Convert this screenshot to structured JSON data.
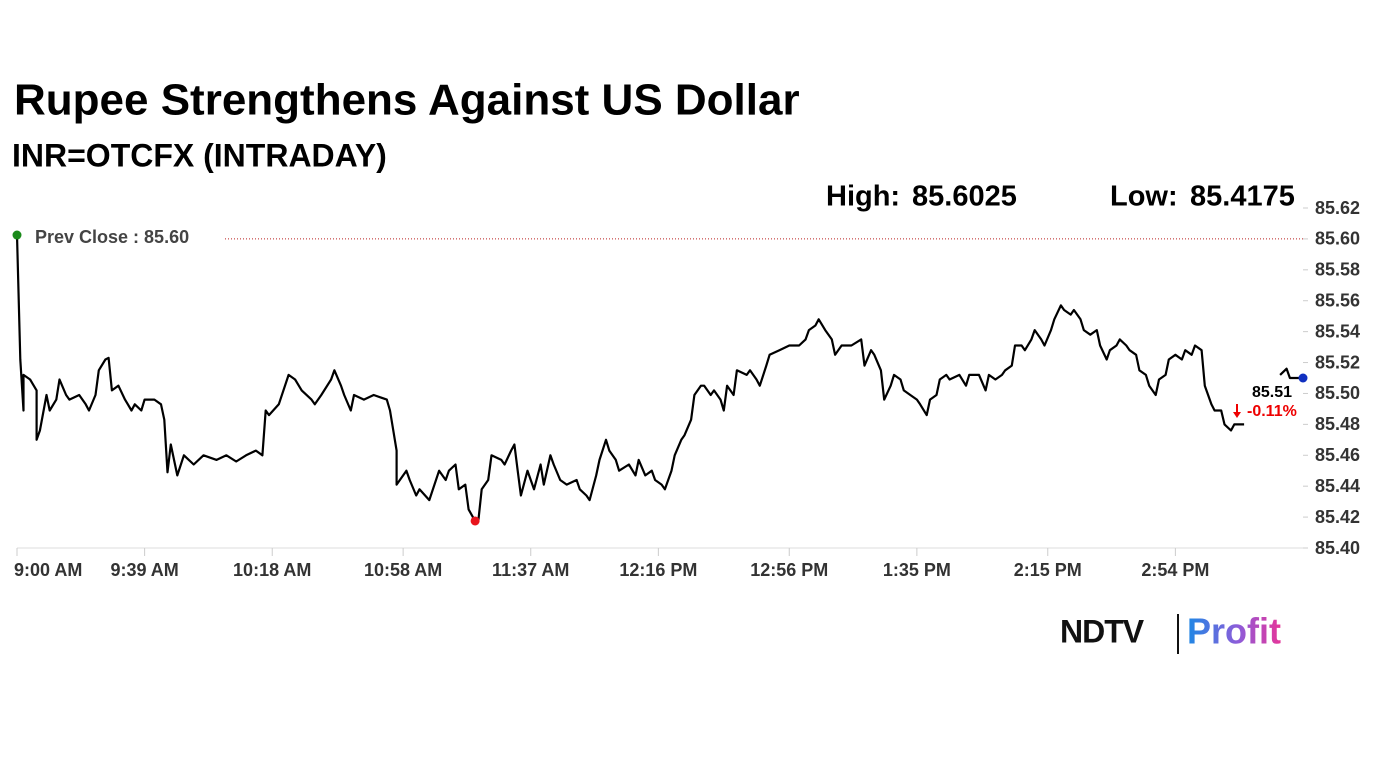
{
  "chart_data": {
    "type": "line",
    "title": "Rupee Strengthens Against US Dollar",
    "subtitle": "INR=OTCFX (INTRADAY)",
    "high_label": "High:",
    "high": 85.6025,
    "low_label": "Low:",
    "low": 85.4175,
    "prev_close": {
      "value": 85.6,
      "label": "Prev Close : 85.60"
    },
    "last": 85.51,
    "change_label": "-0.11%",
    "color": "#000000",
    "grid": false,
    "ylim": [
      85.4,
      85.62
    ],
    "yticks": [
      {
        "value": 85.4,
        "label": "85.40"
      },
      85.42,
      85.44,
      85.46,
      85.48,
      {
        "value": 85.5,
        "label": "85.50"
      },
      85.52,
      85.54,
      85.56,
      85.58,
      {
        "value": 85.6,
        "label": "85.60"
      },
      85.62
    ],
    "xlim": [
      540,
      933
    ],
    "xticks": [
      {
        "value": 540,
        "label": "9:00 AM"
      },
      {
        "value": 579,
        "label": "9:39 AM"
      },
      {
        "value": 618,
        "label": "10:18 AM"
      },
      {
        "value": 658,
        "label": "10:58 AM"
      },
      {
        "value": 697,
        "label": "11:37 AM"
      },
      {
        "value": 736,
        "label": "12:16 PM"
      },
      {
        "value": 776,
        "label": "12:56 PM"
      },
      {
        "value": 815,
        "label": "1:35 PM"
      },
      {
        "value": 855,
        "label": "2:15 PM"
      },
      {
        "value": 894,
        "label": "2:54 PM"
      }
    ],
    "x": [
      540,
      541,
      542,
      542,
      544,
      546,
      546,
      547,
      549,
      550,
      552,
      553,
      555,
      556,
      559,
      561,
      562,
      564,
      565,
      567,
      568,
      569,
      571,
      573,
      575,
      576,
      578,
      579,
      582,
      584,
      585,
      586,
      587,
      589,
      591,
      594,
      597,
      601,
      604,
      607,
      610,
      613,
      615,
      616,
      617,
      620,
      623,
      625,
      627,
      630,
      631,
      633,
      636,
      637,
      639,
      640,
      642,
      643,
      646,
      649,
      653,
      654,
      656,
      656,
      659,
      660,
      662,
      663,
      666,
      669,
      671,
      672,
      674,
      675,
      677,
      678,
      680,
      681,
      682,
      684,
      685,
      688,
      689,
      691,
      692,
      693,
      694,
      696,
      698,
      700,
      701,
      703,
      704,
      706,
      708,
      711,
      712,
      714,
      715,
      717,
      718,
      720,
      721,
      723,
      724,
      727,
      729,
      730,
      732,
      734,
      735,
      737,
      738,
      740,
      741,
      743,
      744,
      746,
      747,
      749,
      750,
      752,
      753,
      755,
      756,
      757,
      759,
      760,
      763,
      764,
      766,
      767,
      769,
      770,
      773,
      776,
      779,
      781,
      782,
      784,
      785,
      787,
      789,
      790,
      792,
      795,
      798,
      799,
      801,
      802,
      804,
      805,
      807,
      808,
      810,
      811,
      813,
      815,
      816,
      818,
      819,
      821,
      822,
      824,
      825,
      828,
      830,
      831,
      834,
      836,
      837,
      839,
      841,
      842,
      844,
      845,
      847,
      848,
      850,
      851,
      853,
      854,
      856,
      857,
      859,
      860,
      862,
      863,
      865,
      866,
      868,
      870,
      871,
      873,
      874,
      876,
      877,
      879,
      880,
      882,
      883,
      885,
      886,
      888,
      889,
      891,
      892,
      894,
      896,
      897,
      899,
      900,
      902,
      903,
      905,
      906,
      908,
      909,
      911,
      912,
      915,
      920,
      926,
      928,
      929,
      933
    ],
    "values": [
      85.6025,
      85.522,
      85.489,
      85.512,
      85.509,
      85.502,
      85.47,
      85.476,
      85.499,
      85.489,
      85.496,
      85.509,
      85.499,
      85.496,
      85.499,
      85.493,
      85.489,
      85.499,
      85.515,
      85.522,
      85.523,
      85.502,
      85.505,
      85.496,
      85.489,
      85.493,
      85.489,
      85.496,
      85.496,
      85.493,
      85.483,
      85.449,
      85.467,
      85.447,
      85.46,
      85.454,
      85.46,
      85.457,
      85.46,
      85.456,
      85.46,
      85.463,
      85.46,
      85.489,
      85.486,
      85.493,
      85.512,
      85.509,
      85.502,
      85.496,
      85.493,
      85.499,
      85.509,
      85.515,
      85.505,
      85.499,
      85.489,
      85.499,
      85.496,
      85.499,
      85.496,
      85.489,
      85.463,
      85.441,
      85.45,
      85.444,
      85.434,
      85.438,
      85.431,
      85.45,
      85.444,
      85.45,
      85.454,
      85.438,
      85.441,
      85.425,
      85.4175,
      85.418,
      85.438,
      85.444,
      85.46,
      85.457,
      85.454,
      85.463,
      85.467,
      85.45,
      85.434,
      85.45,
      85.438,
      85.454,
      85.441,
      85.46,
      85.454,
      85.444,
      85.441,
      85.444,
      85.438,
      85.434,
      85.431,
      85.447,
      85.457,
      85.47,
      85.463,
      85.457,
      85.45,
      85.454,
      85.447,
      85.457,
      85.447,
      85.45,
      85.444,
      85.441,
      85.438,
      85.45,
      85.46,
      85.47,
      85.473,
      85.483,
      85.499,
      85.505,
      85.505,
      85.499,
      85.502,
      85.496,
      85.489,
      85.505,
      85.499,
      85.515,
      85.512,
      85.515,
      85.509,
      85.505,
      85.518,
      85.525,
      85.528,
      85.531,
      85.531,
      85.535,
      85.541,
      85.544,
      85.548,
      85.541,
      85.535,
      85.525,
      85.531,
      85.531,
      85.535,
      85.518,
      85.528,
      85.525,
      85.515,
      85.496,
      85.505,
      85.512,
      85.509,
      85.502,
      85.499,
      85.496,
      85.493,
      85.486,
      85.496,
      85.499,
      85.509,
      85.512,
      85.509,
      85.512,
      85.505,
      85.512,
      85.512,
      85.502,
      85.512,
      85.509,
      85.512,
      85.515,
      85.518,
      85.531,
      85.531,
      85.528,
      85.535,
      85.541,
      85.535,
      85.531,
      85.541,
      85.548,
      85.557,
      85.554,
      85.551,
      85.554,
      85.548,
      85.541,
      85.538,
      85.541,
      85.531,
      85.522,
      85.528,
      85.531,
      85.535,
      85.531,
      85.528,
      85.525,
      85.515,
      85.512,
      85.505,
      85.499,
      85.509,
      85.512,
      85.522,
      85.525,
      85.522,
      85.528,
      85.525,
      85.531,
      85.528,
      85.505,
      85.493,
      85.489,
      85.489,
      85.48,
      85.476,
      85.48,
      85.48,
      null,
      85.512,
      85.516,
      85.51,
      85.51
    ],
    "logo": {
      "left": "NDTV",
      "right": "Profit"
    }
  }
}
